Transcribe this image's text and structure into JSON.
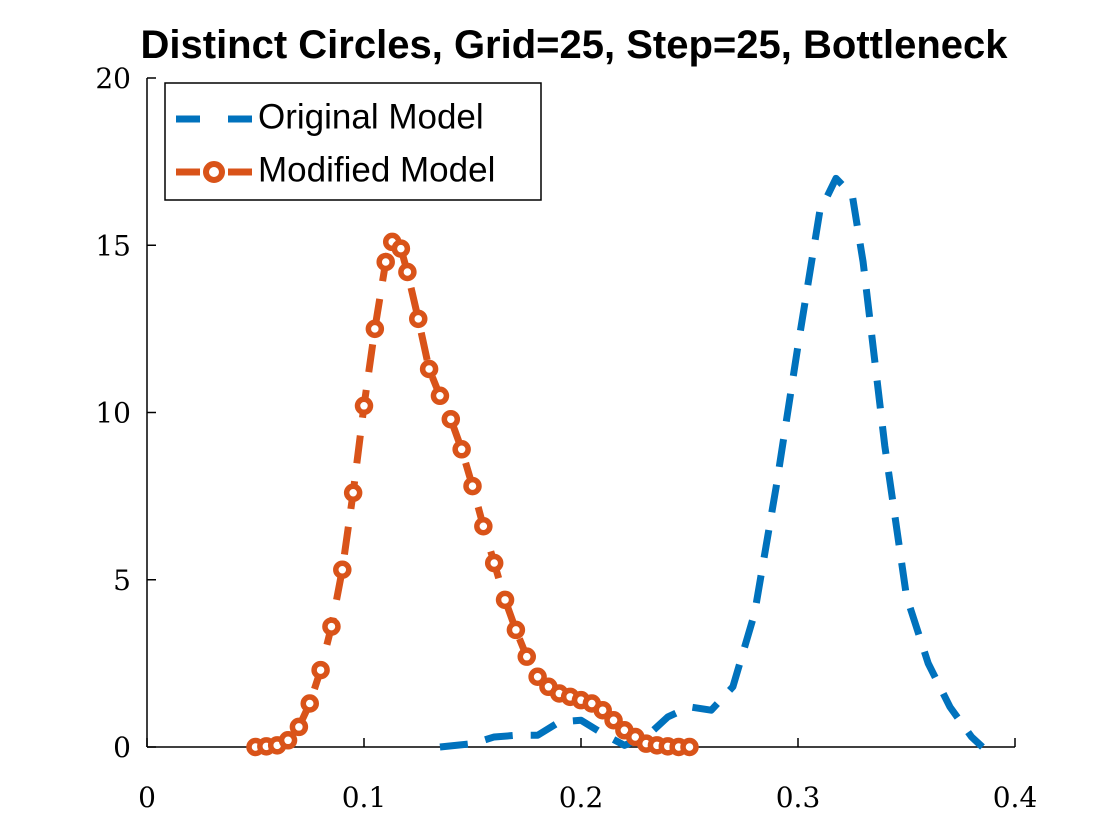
{
  "chart_data": {
    "type": "line",
    "title": "Distinct Circles, Grid=25, Step=25, Bottleneck",
    "xlim": [
      0,
      0.4
    ],
    "xticks": [
      0,
      0.1,
      0.2,
      0.3,
      0.4
    ],
    "ylim": [
      0,
      20
    ],
    "yticks": [
      0,
      5,
      10,
      15,
      20
    ],
    "legend": "top-left",
    "series": [
      {
        "name": "Original Model",
        "color": "#0072bd",
        "line_style": "dashed",
        "marker": "none",
        "x": [
          0.135,
          0.15,
          0.16,
          0.17,
          0.18,
          0.19,
          0.2,
          0.21,
          0.22,
          0.23,
          0.24,
          0.25,
          0.26,
          0.27,
          0.28,
          0.29,
          0.3,
          0.31,
          0.3175,
          0.325,
          0.33,
          0.34,
          0.35,
          0.36,
          0.37,
          0.38,
          0.385
        ],
        "values": [
          0,
          0.1,
          0.3,
          0.35,
          0.35,
          0.75,
          0.8,
          0.4,
          0.05,
          0.3,
          0.9,
          1.2,
          1.1,
          1.8,
          4,
          7.8,
          12,
          16,
          17,
          16.5,
          14.5,
          9,
          4.5,
          2.5,
          1.2,
          0.3,
          0
        ]
      },
      {
        "name": "Modified Model",
        "color": "#d95319",
        "line_style": "dashed",
        "marker": "circle",
        "x": [
          0.05,
          0.055,
          0.06,
          0.065,
          0.07,
          0.075,
          0.08,
          0.085,
          0.09,
          0.095,
          0.1,
          0.105,
          0.11,
          0.113,
          0.117,
          0.12,
          0.125,
          0.13,
          0.135,
          0.14,
          0.145,
          0.15,
          0.155,
          0.16,
          0.165,
          0.17,
          0.175,
          0.18,
          0.185,
          0.19,
          0.195,
          0.2,
          0.205,
          0.21,
          0.215,
          0.22,
          0.225,
          0.23,
          0.235,
          0.24,
          0.245,
          0.25
        ],
        "values": [
          0,
          0.02,
          0.05,
          0.2,
          0.6,
          1.3,
          2.3,
          3.6,
          5.3,
          7.6,
          10.2,
          12.5,
          14.5,
          15.1,
          14.9,
          14.2,
          12.8,
          11.3,
          10.5,
          9.8,
          8.9,
          7.8,
          6.6,
          5.5,
          4.4,
          3.5,
          2.7,
          2.1,
          1.8,
          1.6,
          1.5,
          1.4,
          1.3,
          1.1,
          0.8,
          0.5,
          0.3,
          0.1,
          0.05,
          0.02,
          0,
          0
        ]
      }
    ]
  }
}
